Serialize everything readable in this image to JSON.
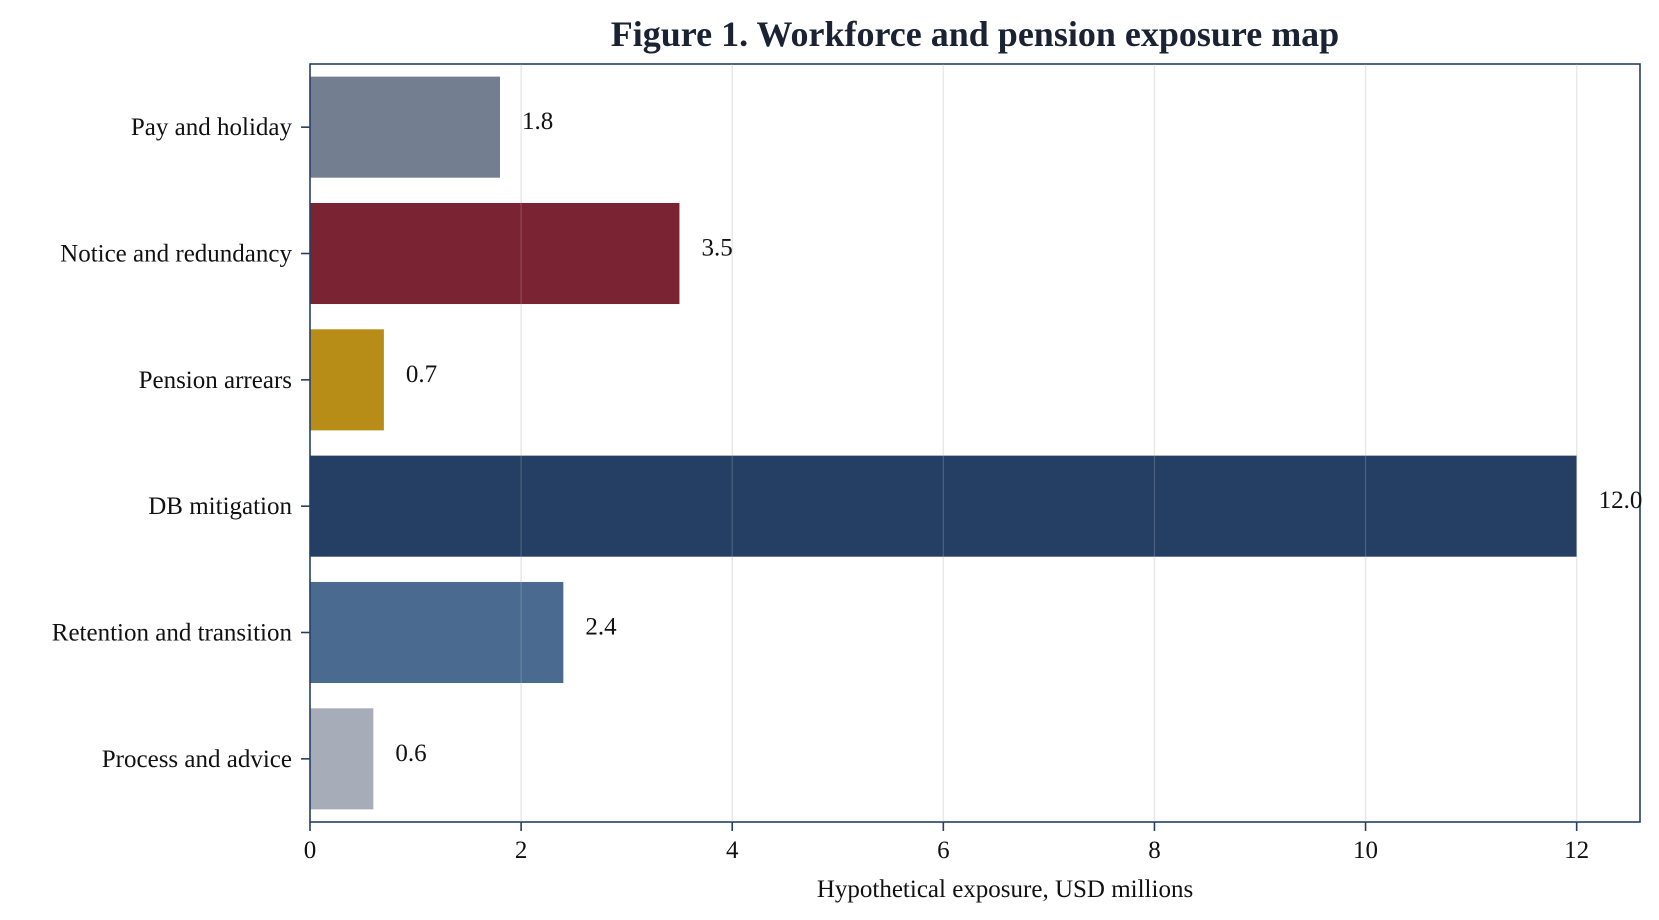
{
  "chart_data": {
    "type": "bar",
    "orientation": "horizontal",
    "title": "Figure 1. Workforce and pension exposure map",
    "xlabel": "Hypothetical exposure, USD millions",
    "ylabel": "",
    "categories": [
      "Pay and holiday",
      "Notice and redundancy",
      "Pension arrears",
      "DB mitigation",
      "Retention and transition",
      "Process and advice"
    ],
    "values": [
      1.8,
      3.5,
      0.7,
      12.0,
      2.4,
      0.6
    ],
    "data_labels": [
      "1.8",
      "3.5",
      "0.7",
      "12.0",
      "2.4",
      "0.6"
    ],
    "bar_colors": [
      "#737f90",
      "#7a2333",
      "#b78c17",
      "#243f63",
      "#4a6a8f",
      "#a6adb8"
    ],
    "xlim": [
      0,
      12.6
    ],
    "xticks": [
      0,
      2,
      4,
      6,
      8,
      10,
      12
    ],
    "xtick_labels": [
      "0",
      "2",
      "4",
      "6",
      "8",
      "10",
      "12"
    ],
    "grid": "vertical",
    "legend": "none",
    "colors": {
      "axis": "#243f63",
      "grid": "#e3e3e3",
      "title": "#1a2233",
      "text": "#111111"
    }
  }
}
